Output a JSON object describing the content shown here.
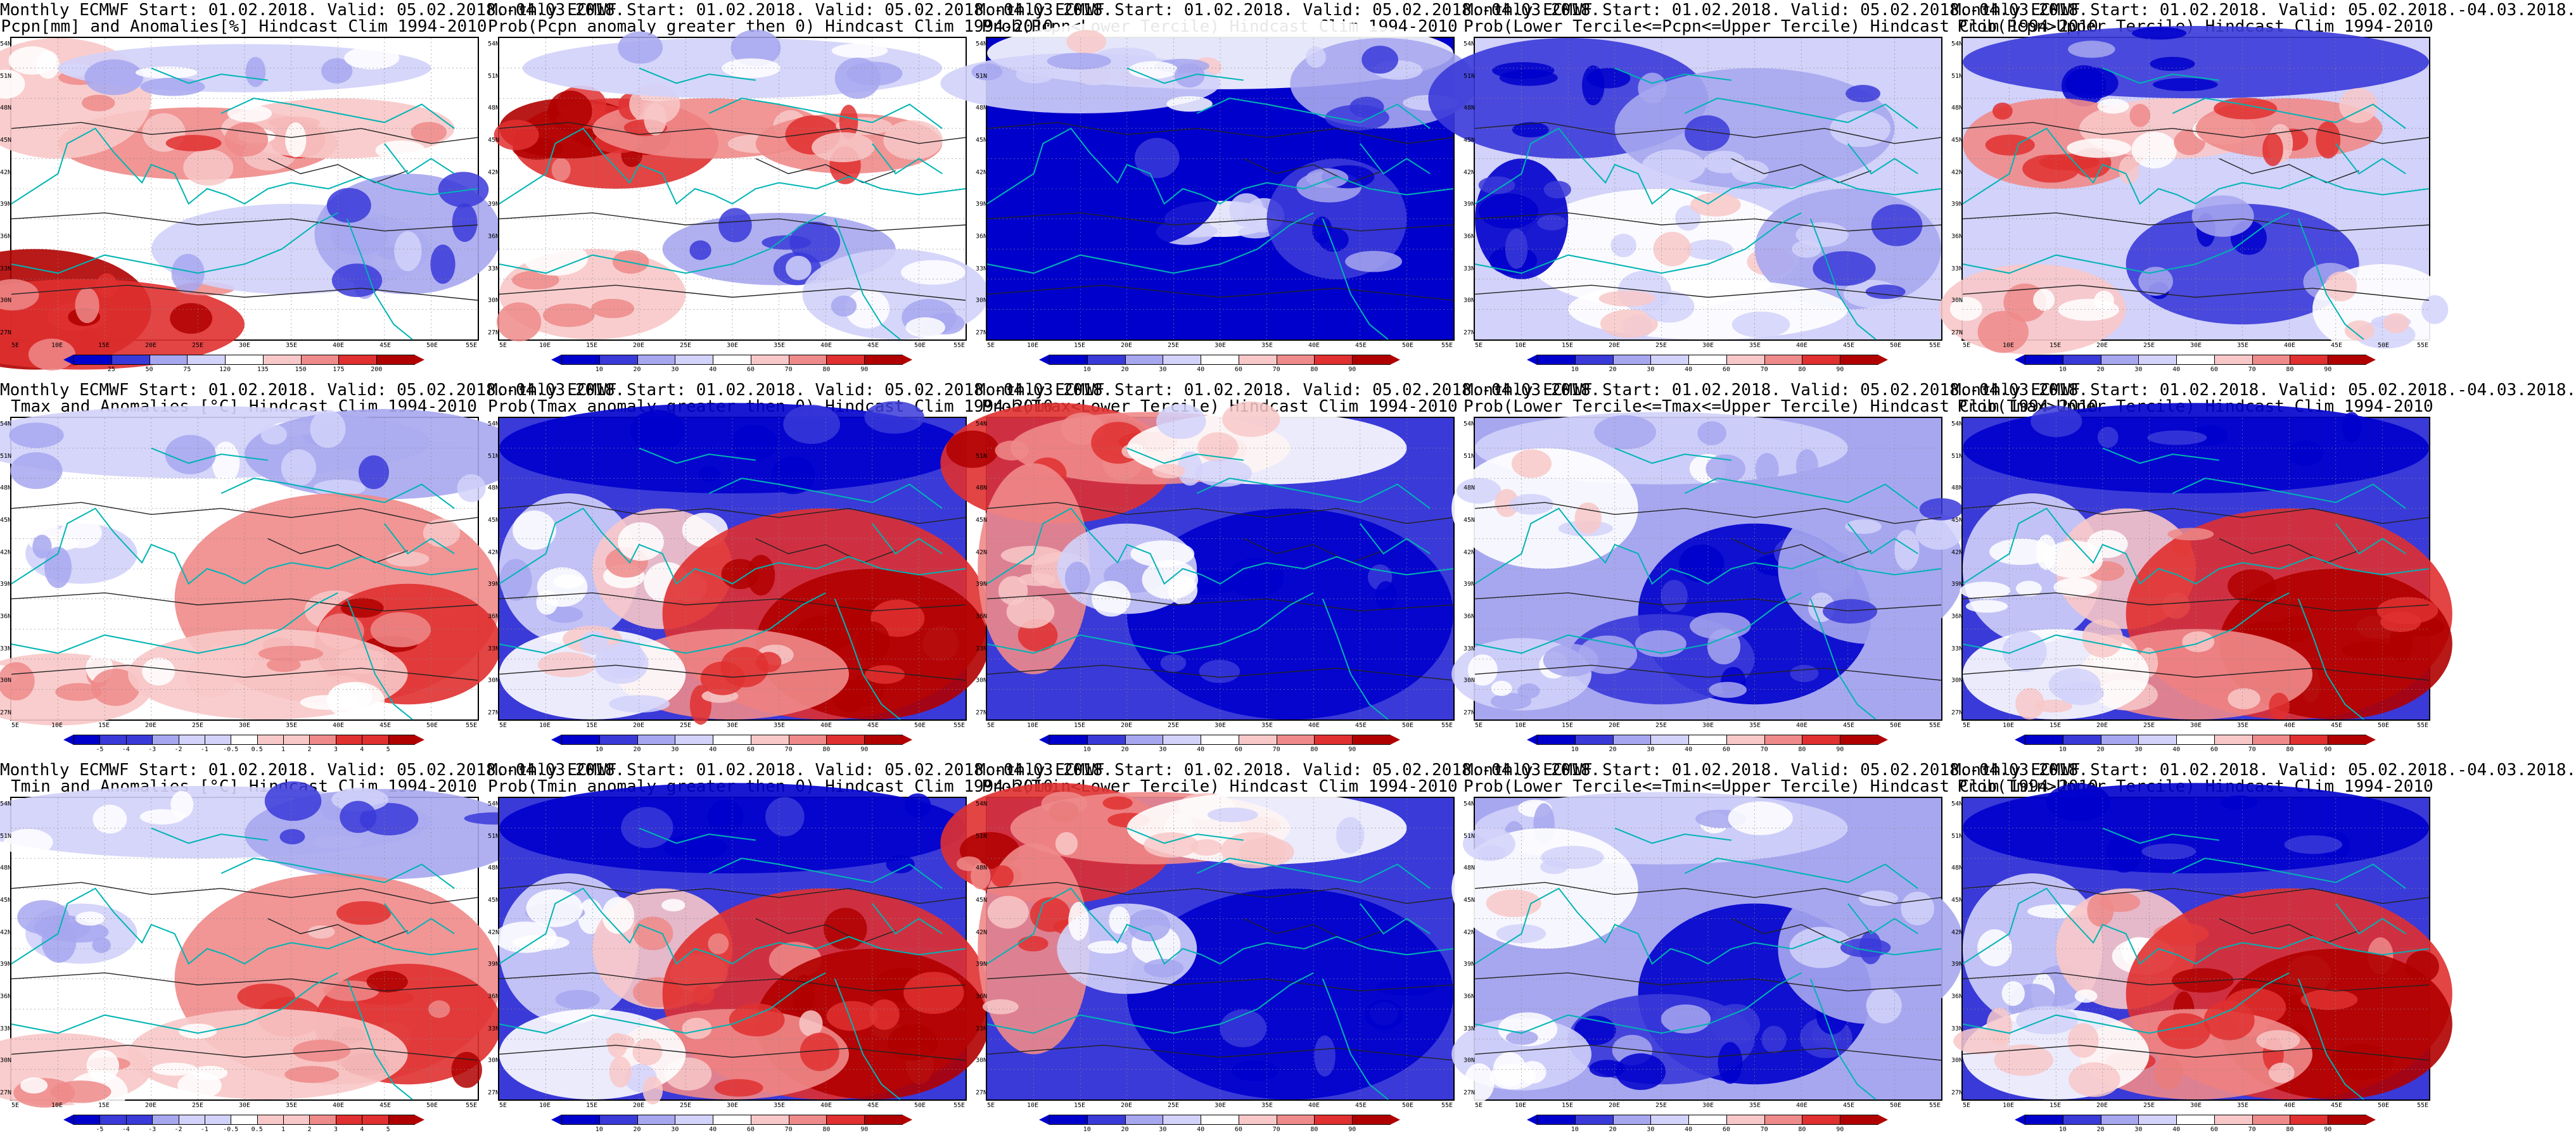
{
  "panels": [
    {
      "title1": "Monthly ECMWF Start: 01.02.2018. Valid: 05.02.2018.-04.03.2018.",
      "title2": "Pcpn[mm] and Anomalies[%] Hindcast Clim 1994-2010",
      "scheme": "anom",
      "colorbar": [
        "25",
        "50",
        "75",
        "120",
        "135",
        "150",
        "175",
        "200"
      ]
    },
    {
      "title1": "Monthly ECMWF Start: 01.02.2018. Valid: 05.02.2018.-04.03.2018.",
      "title2": "Prob(Pcpn anomaly greater then 0) Hindcast Clim 1994-2010",
      "scheme": "probpos",
      "colorbar": [
        "10",
        "20",
        "30",
        "40",
        "60",
        "70",
        "80",
        "90"
      ]
    },
    {
      "title1": "Monthly ECMWF Start: 01.02.2018. Valid: 05.02.2018.-04.03.2018.",
      "title2": "Prob(Pcpn<Lower Tercile) Hindcast Clim 1994-2010",
      "scheme": "lowblue",
      "colorbar": [
        "10",
        "20",
        "30",
        "40",
        "60",
        "70",
        "80",
        "90"
      ]
    },
    {
      "title1": "Monthly ECMWF Start: 01.02.2018. Valid: 05.02.2018.-04.03.2018.",
      "title2": "Prob(Lower Tercile<=Pcpn<=Upper Tercile) Hindcast Clim 1994-2010",
      "scheme": "mid",
      "colorbar": [
        "10",
        "20",
        "30",
        "40",
        "60",
        "70",
        "80",
        "90"
      ]
    },
    {
      "title1": "Monthly ECMWF Start: 01.02.2018. Valid: 05.02.2018.-04.03.2018.",
      "title2": "Prob(Pcpn>Upper Tercile) Hindcast Clim 1994-2010",
      "scheme": "upmix",
      "colorbar": [
        "10",
        "20",
        "30",
        "40",
        "60",
        "70",
        "80",
        "90"
      ]
    },
    {
      "title1": "Monthly ECMWF Start: 01.02.2018. Valid: 05.02.2018.-04.03.2018.",
      "title2": "Tmax and Anomalies [°C] Hindcast Clim 1994-2010",
      "scheme": "tanom",
      "colorbar": [
        "-5",
        "-4",
        "-3",
        "-2",
        "-1",
        "-0.5",
        "0.5",
        "1",
        "2",
        "3",
        "4",
        "5"
      ]
    },
    {
      "title1": "Monthly ECMWF Start: 01.02.2018. Valid: 05.02.2018.-04.03.2018.",
      "title2": "Prob(Tmax anomaly greater then 0) Hindcast Clim 1994-2010",
      "scheme": "warm",
      "colorbar": [
        "10",
        "20",
        "30",
        "40",
        "60",
        "70",
        "80",
        "90"
      ]
    },
    {
      "title1": "Monthly ECMWF Start: 01.02.2018. Valid: 05.02.2018.-04.03.2018.",
      "title2": "Prob(Tmax<Lower Tercile) Hindcast Clim 1994-2010",
      "scheme": "cold",
      "colorbar": [
        "10",
        "20",
        "30",
        "40",
        "60",
        "70",
        "80",
        "90"
      ]
    },
    {
      "title1": "Monthly ECMWF Start: 01.02.2018. Valid: 05.02.2018.-04.03.2018.",
      "title2": "Prob(Lower Tercile<=Tmax<=Upper Tercile) Hindcast Clim 1994-2010",
      "scheme": "midblue",
      "colorbar": [
        "10",
        "20",
        "30",
        "40",
        "60",
        "70",
        "80",
        "90"
      ]
    },
    {
      "title1": "Monthly ECMWF Start: 01.02.2018. Valid: 05.02.2018.-04.03.2018.",
      "title2": "Prob(Tmax>Upper Tercile) Hindcast Clim 1994-2010",
      "scheme": "warm",
      "colorbar": [
        "10",
        "20",
        "30",
        "40",
        "60",
        "70",
        "80",
        "90"
      ]
    },
    {
      "title1": "Monthly ECMWF Start: 01.02.2018. Valid: 05.02.2018.-04.03.2018.",
      "title2": "Tmin and Anomalies [°C] Hindcast Clim 1994-2010",
      "scheme": "tanom",
      "colorbar": [
        "-5",
        "-4",
        "-3",
        "-2",
        "-1",
        "-0.5",
        "0.5",
        "1",
        "2",
        "3",
        "4",
        "5"
      ]
    },
    {
      "title1": "Monthly ECMWF Start: 01.02.2018. Valid: 05.02.2018.-04.03.2018.",
      "title2": "Prob(Tmin anomaly greater then 0) Hindcast Clim 1994-2010",
      "scheme": "warm",
      "colorbar": [
        "10",
        "20",
        "30",
        "40",
        "60",
        "70",
        "80",
        "90"
      ]
    },
    {
      "title1": "Monthly ECMWF Start: 01.02.2018. Valid: 05.02.2018.-04.03.2018.",
      "title2": "Prob(Tmin<Lower Tercile) Hindcast Clim 1994-2010",
      "scheme": "cold",
      "colorbar": [
        "10",
        "20",
        "30",
        "40",
        "60",
        "70",
        "80",
        "90"
      ]
    },
    {
      "title1": "Monthly ECMWF Start: 01.02.2018. Valid: 05.02.2018.-04.03.2018.",
      "title2": "Prob(Lower Tercile<=Tmin<=Upper Tercile) Hindcast Clim 1994-2010",
      "scheme": "midblue",
      "colorbar": [
        "10",
        "20",
        "30",
        "40",
        "60",
        "70",
        "80",
        "90"
      ]
    },
    {
      "title1": "Monthly ECMWF Start: 01.02.2018. Valid: 05.02.2018.-04.03.2018.",
      "title2": "Prob(Tmin>Upper Tercile) Hindcast Clim 1994-2010",
      "scheme": "warm",
      "colorbar": [
        "10",
        "20",
        "30",
        "40",
        "60",
        "70",
        "80",
        "90"
      ]
    }
  ],
  "lat_labels": [
    "54N",
    "51N",
    "48N",
    "45N",
    "42N",
    "39N",
    "36N",
    "33N",
    "30N",
    "27N"
  ],
  "lon_labels": [
    "5E",
    "10E",
    "15E",
    "20E",
    "25E",
    "30E",
    "35E",
    "40E",
    "45E",
    "50E",
    "55E"
  ],
  "colors": {
    "deep_blue": "#0000cc",
    "mid_blue": "#3a3ad9",
    "light_blue": "#a7a7f0",
    "pale_blue": "#d2d2fa",
    "white": "#ffffff",
    "pale_red": "#f8c8c8",
    "light_red": "#ef8a8a",
    "mid_red": "#e03030",
    "deep_red": "#b00000",
    "coast": "#00b4b4",
    "contour": "#222222"
  }
}
